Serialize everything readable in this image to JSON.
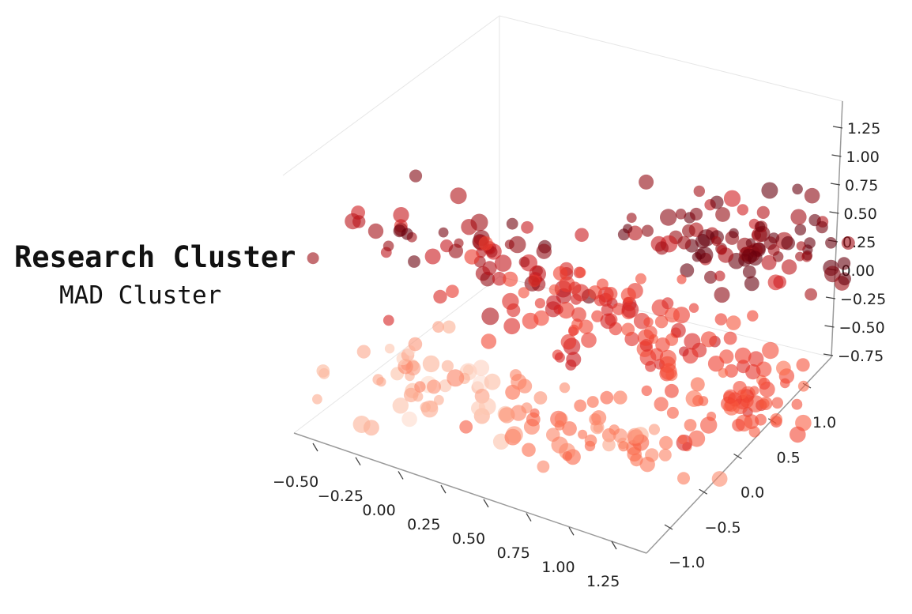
{
  "labels": {
    "title": "Research Cluster",
    "subtitle": "MAD Cluster"
  },
  "chart_data": {
    "type": "scatter",
    "projection": "3d",
    "colormap": "Reds",
    "marker_alpha": 0.6,
    "z_ticks": [
      "1.25",
      "1.00",
      "0.75",
      "0.50",
      "0.25",
      "0.00",
      "−0.25",
      "−0.50",
      "−0.75"
    ],
    "x_ticks": [
      "−0.50",
      "−0.25",
      "0.00",
      "0.25",
      "0.50",
      "0.75",
      "1.00",
      "1.25"
    ],
    "y_ticks": [
      "1.0",
      "0.5",
      "0.0",
      "−0.5",
      "−1.0"
    ],
    "xlim": [
      -0.6,
      1.35
    ],
    "ylim": [
      -1.2,
      1.3
    ],
    "zlim": [
      -0.8,
      1.35
    ],
    "clusters": [
      {
        "center": [
          0.05,
          -0.7,
          1.0
        ],
        "spread": [
          0.35,
          0.22,
          0.17
        ],
        "count": 60,
        "shade": 0.9
      },
      {
        "center": [
          0.6,
          0.7,
          1.1
        ],
        "spread": [
          0.22,
          0.3,
          0.15
        ],
        "count": 95,
        "shade": 0.95
      },
      {
        "center": [
          0.4,
          -0.1,
          0.5
        ],
        "spread": [
          0.35,
          0.3,
          0.16
        ],
        "count": 95,
        "shade": 0.68
      },
      {
        "center": [
          0.85,
          0.2,
          0.05
        ],
        "spread": [
          0.15,
          0.3,
          0.12
        ],
        "count": 60,
        "shade": 0.58
      },
      {
        "center": [
          -0.25,
          -0.6,
          -0.3
        ],
        "spread": [
          0.2,
          0.25,
          0.15
        ],
        "count": 50,
        "shade": 0.28
      },
      {
        "center": [
          0.4,
          -0.2,
          -0.45
        ],
        "spread": [
          0.25,
          0.25,
          0.12
        ],
        "count": 60,
        "shade": 0.42
      }
    ]
  }
}
